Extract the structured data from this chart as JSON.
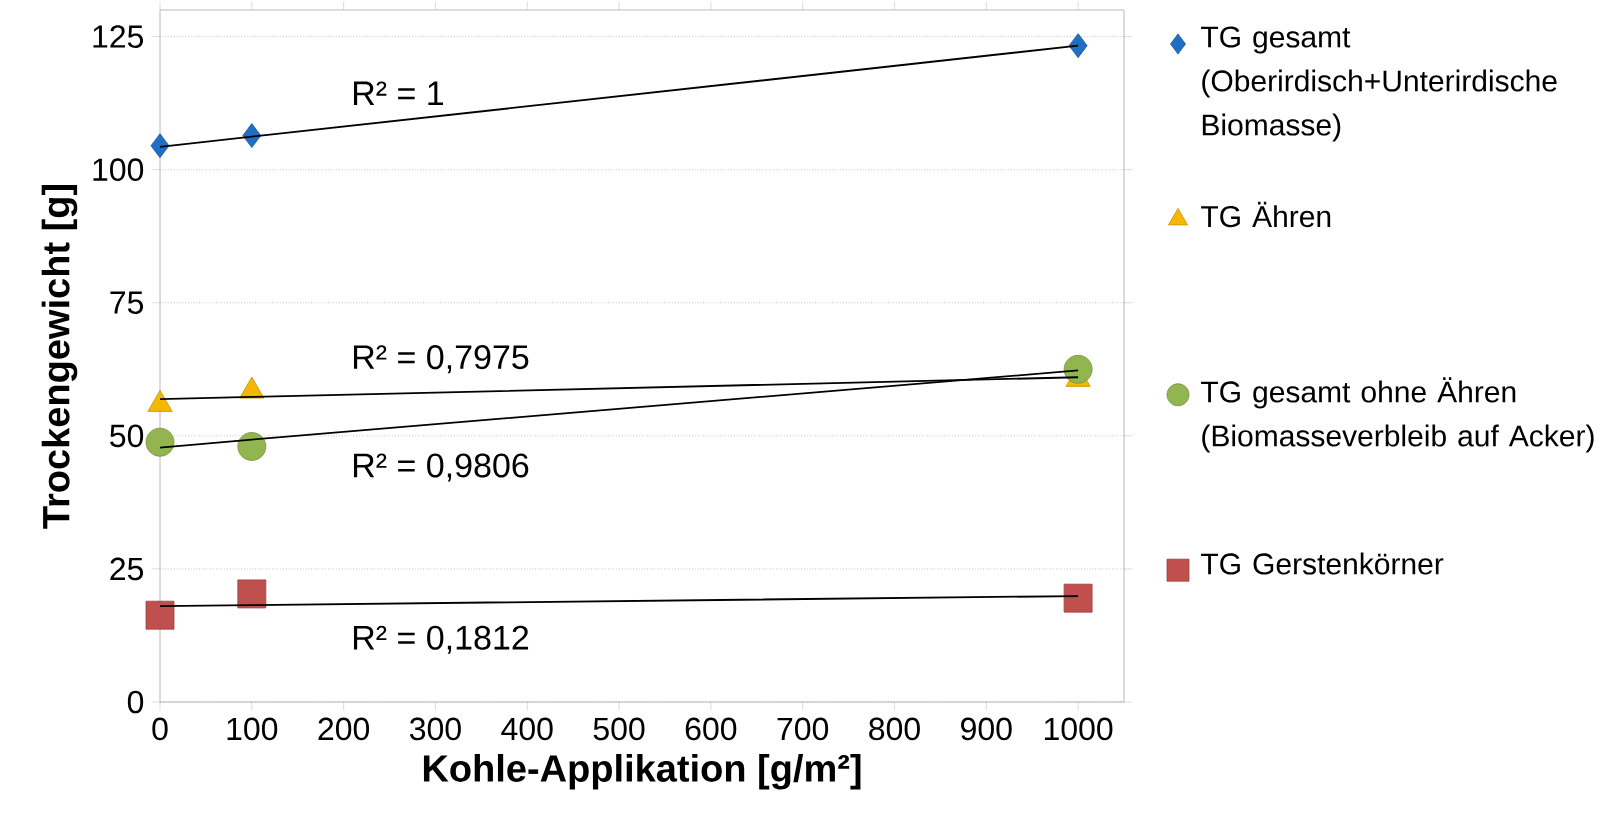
{
  "chart_data": {
    "type": "scatter",
    "xlabel": "Kohle-Applikation [g/m²]",
    "ylabel": "Trockengewicht [g]",
    "x": [
      0,
      100,
      1000
    ],
    "series": [
      {
        "name": "TG gesamt (Oberirdisch+Unterirdische Biomasse)",
        "color": "#1f6fc5",
        "marker": "diamond",
        "values": [
          104.5,
          106.4,
          123.3
        ]
      },
      {
        "name": "TG Ähren",
        "color": "#f5b800",
        "marker": "triangle",
        "values": [
          55.9,
          58.4,
          60.6
        ]
      },
      {
        "name": "TG gesamt ohne Ähren (Biomasseverbleib auf Acker)",
        "color": "#92b550",
        "marker": "circle",
        "values": [
          48.8,
          48.0,
          62.5
        ]
      },
      {
        "name": "TG Gerstenkörner",
        "color": "#c0504d",
        "marker": "square",
        "values": [
          16.3,
          20.3,
          19.5
        ]
      },
      {
        "type": "line",
        "color": "#000000",
        "values": [
          104.3,
          106.2,
          123.3
        ]
      },
      {
        "type": "line",
        "color": "#000000",
        "values": [
          56.9,
          57.3,
          61.0
        ]
      },
      {
        "type": "line",
        "color": "#000000",
        "values": [
          47.8,
          49.3,
          62.3
        ]
      },
      {
        "type": "line",
        "color": "#000000",
        "values": [
          18.0,
          18.2,
          19.9
        ]
      }
    ],
    "annotations": [
      "R² = 1",
      "R² = 0,7975",
      "R² = 0,9806",
      "R² = 0,1812"
    ],
    "xlim": [
      0,
      1050
    ],
    "ylim": [
      0,
      130
    ],
    "xticks": [
      0,
      100,
      200,
      300,
      400,
      500,
      600,
      700,
      800,
      900,
      1000
    ],
    "yticks": [
      0,
      25,
      50,
      75,
      100,
      125
    ],
    "grid": "y",
    "legend": "right"
  }
}
